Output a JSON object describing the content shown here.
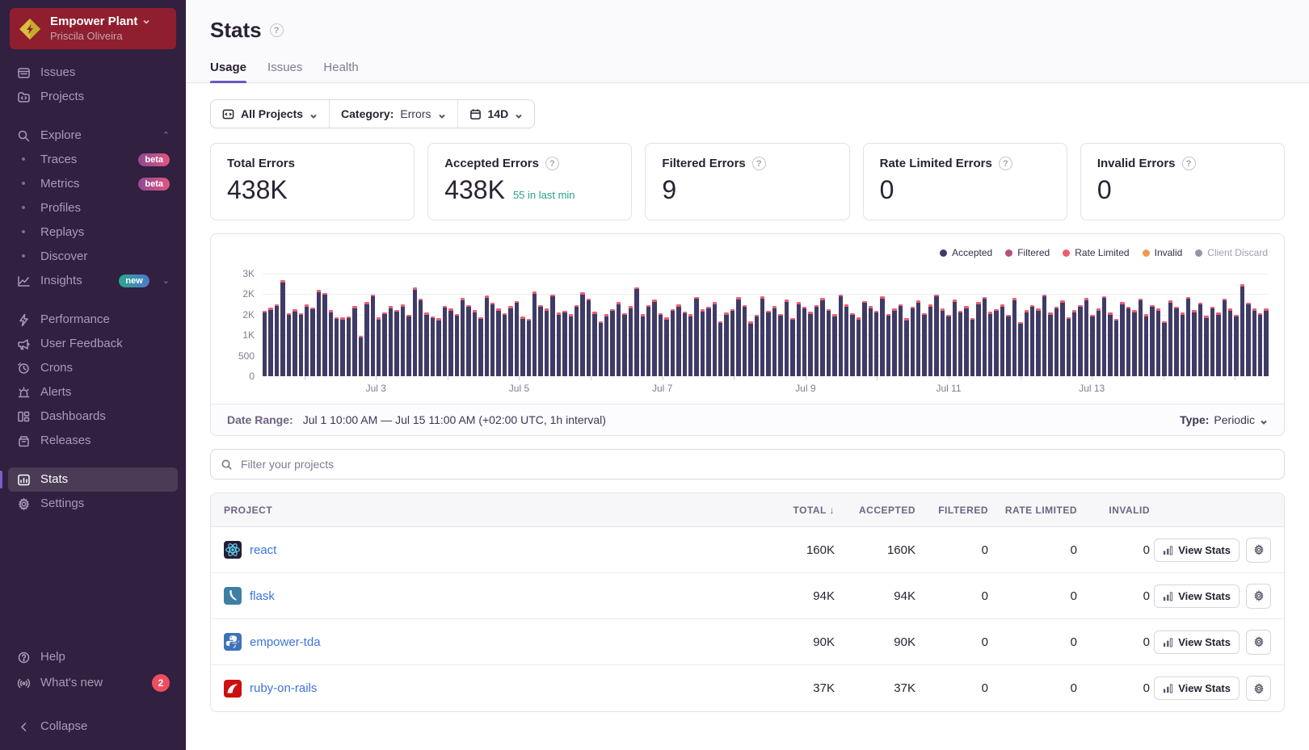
{
  "colors": {
    "accent": "#6559c5",
    "accepted": "#3f3b66",
    "filtered": "#b5517c",
    "rate_limited": "#ef5e69",
    "invalid": "#f19b4d",
    "client_discard": "#9a91a5",
    "link_blue": "#3c74db",
    "success_teal": "#2ba185",
    "badge_red": "#ef4e5e",
    "org_banner_red": "#8f1e2e"
  },
  "sidebar": {
    "org": {
      "name": "Empower Plant",
      "user": "Priscila Oliveira"
    },
    "groups": [
      [
        {
          "id": "issues",
          "label": "Issues",
          "icon": "issues"
        },
        {
          "id": "projects",
          "label": "Projects",
          "icon": "projects"
        }
      ],
      [
        {
          "id": "explore",
          "label": "Explore",
          "icon": "search",
          "chevron": "up"
        },
        {
          "id": "traces",
          "label": "Traces",
          "bullet": true,
          "badge": "beta"
        },
        {
          "id": "metrics",
          "label": "Metrics",
          "bullet": true,
          "badge": "beta"
        },
        {
          "id": "profiles",
          "label": "Profiles",
          "bullet": true
        },
        {
          "id": "replays",
          "label": "Replays",
          "bullet": true
        },
        {
          "id": "discover",
          "label": "Discover",
          "bullet": true
        },
        {
          "id": "insights",
          "label": "Insights",
          "icon": "insights",
          "badge": "new",
          "chevron": "down"
        }
      ],
      [
        {
          "id": "performance",
          "label": "Performance",
          "icon": "performance"
        },
        {
          "id": "user-feedback",
          "label": "User Feedback",
          "icon": "megaphone"
        },
        {
          "id": "crons",
          "label": "Crons",
          "icon": "clock"
        },
        {
          "id": "alerts",
          "label": "Alerts",
          "icon": "siren"
        },
        {
          "id": "dashboards",
          "label": "Dashboards",
          "icon": "dashboards"
        },
        {
          "id": "releases",
          "label": "Releases",
          "icon": "releases"
        }
      ],
      [
        {
          "id": "stats",
          "label": "Stats",
          "icon": "stats",
          "selected": true
        },
        {
          "id": "settings",
          "label": "Settings",
          "icon": "gear"
        }
      ]
    ],
    "footer": [
      {
        "id": "help",
        "label": "Help",
        "icon": "help"
      },
      {
        "id": "whats-new",
        "label": "What's new",
        "icon": "broadcast",
        "count": "2"
      }
    ],
    "collapse_label": "Collapse"
  },
  "header": {
    "title": "Stats",
    "tabs": [
      {
        "label": "Usage",
        "active": true
      },
      {
        "label": "Issues",
        "active": false
      },
      {
        "label": "Health",
        "active": false
      }
    ]
  },
  "filters": {
    "projects_value": "All Projects",
    "category_label": "Category:",
    "category_value": "Errors",
    "date_range_value": "14D"
  },
  "cards": [
    {
      "title": "Total Errors",
      "value": "438K",
      "help": false,
      "sub": ""
    },
    {
      "title": "Accepted Errors",
      "value": "438K",
      "help": true,
      "sub": "55 in last min"
    },
    {
      "title": "Filtered Errors",
      "value": "9",
      "help": true,
      "sub": ""
    },
    {
      "title": "Rate Limited Errors",
      "value": "0",
      "help": true,
      "sub": ""
    },
    {
      "title": "Invalid Errors",
      "value": "0",
      "help": true,
      "sub": ""
    }
  ],
  "chart_data": {
    "type": "bar",
    "title": "Errors over time (hourly, stacked)",
    "x_start": "Jul 1 10:00 AM",
    "x_end": "Jul 15 11:00 AM",
    "bin_interval": "1h (rendered as 2h bins)",
    "ylim": [
      0,
      2600
    ],
    "y_ticks": [
      {
        "value": 2500,
        "label": "3K"
      },
      {
        "value": 2000,
        "label": "2K"
      },
      {
        "value": 1500,
        "label": "2K"
      },
      {
        "value": 1000,
        "label": "1K"
      },
      {
        "value": 500,
        "label": "500"
      },
      {
        "value": 0,
        "label": "0"
      }
    ],
    "x_tick_days": [
      2,
      3,
      4,
      5,
      6,
      7,
      8,
      9,
      10,
      11,
      12,
      13,
      14,
      15
    ],
    "x_labeled_days": [
      3,
      5,
      7,
      9,
      11,
      13
    ],
    "x_tick_labels": [
      "Jul 3",
      "Jul 5",
      "Jul 7",
      "Jul 9",
      "Jul 11",
      "Jul 13"
    ],
    "total_hours": 337,
    "start_offset_hours": 14,
    "legend": [
      {
        "name": "Accepted",
        "color": "#3f3b66",
        "enabled": true
      },
      {
        "name": "Filtered",
        "color": "#b5517c",
        "enabled": true
      },
      {
        "name": "Rate Limited",
        "color": "#ef5e69",
        "enabled": true
      },
      {
        "name": "Invalid",
        "color": "#f19b4d",
        "enabled": true
      },
      {
        "name": "Client Discard",
        "color": "#9a91a5",
        "enabled": false
      }
    ],
    "series": [
      {
        "name": "Accepted",
        "values": [
          1560,
          1620,
          1710,
          2280,
          1500,
          1580,
          1490,
          1700,
          1640,
          2050,
          1980,
          1550,
          1400,
          1370,
          1420,
          1650,
          950,
          1750,
          1950,
          1380,
          1520,
          1660,
          1580,
          1700,
          1450,
          2100,
          1850,
          1500,
          1420,
          1360,
          1680,
          1590,
          1470,
          1850,
          1700,
          1550,
          1400,
          1920,
          1750,
          1600,
          1500,
          1650,
          1800,
          1400,
          1350,
          2000,
          1700,
          1600,
          1950,
          1500,
          1550,
          1450,
          1700,
          1980,
          1850,
          1520,
          1300,
          1450,
          1600,
          1750,
          1500,
          1650,
          2120,
          1450,
          1700,
          1820,
          1500,
          1380,
          1600,
          1700,
          1540,
          1460,
          1900,
          1580,
          1650,
          1750,
          1300,
          1500,
          1600,
          1870,
          1700,
          1280,
          1450,
          1900,
          1560,
          1650,
          1480,
          1820,
          1380,
          1750,
          1650,
          1520,
          1700,
          1850,
          1600,
          1450,
          1950,
          1700,
          1500,
          1380,
          1800,
          1650,
          1550,
          1900,
          1480,
          1600,
          1720,
          1350,
          1650,
          1800,
          1500,
          1700,
          1950,
          1600,
          1450,
          1820,
          1550,
          1650,
          1380,
          1750,
          1900,
          1520,
          1600,
          1700,
          1450,
          1850,
          1280,
          1550,
          1700,
          1600,
          1950,
          1500,
          1650,
          1800,
          1400,
          1550,
          1700,
          1850,
          1450,
          1600,
          1920,
          1500,
          1350,
          1750,
          1650,
          1550,
          1850,
          1450,
          1700,
          1600,
          1300,
          1800,
          1650,
          1500,
          1900,
          1550,
          1750,
          1420,
          1650,
          1500,
          1850,
          1600,
          1450,
          2180,
          1750,
          1600,
          1500,
          1600
        ]
      },
      {
        "name": "Rate Limited (tip)",
        "tip_cycle": [
          45,
          60,
          30,
          55,
          40,
          65,
          35,
          50
        ]
      }
    ]
  },
  "date_range": {
    "label": "Date Range:",
    "value": "Jul 1 10:00 AM — Jul 15 11:00 AM (+02:00 UTC, 1h interval)",
    "type_label": "Type:",
    "type_value": "Periodic"
  },
  "search": {
    "placeholder": "Filter your projects"
  },
  "table": {
    "columns": [
      "PROJECT",
      "TOTAL",
      "ACCEPTED",
      "FILTERED",
      "RATE LIMITED",
      "INVALID"
    ],
    "sorted_column": "TOTAL",
    "view_stats_label": "View Stats",
    "rows": [
      {
        "project": "react",
        "platform": "react",
        "icon_bg": "#241e35",
        "total": "160K",
        "accepted": "160K",
        "filtered": "0",
        "rate_limited": "0",
        "invalid": "0"
      },
      {
        "project": "flask",
        "platform": "flask",
        "icon_bg": "#3f7fa6",
        "total": "94K",
        "accepted": "94K",
        "filtered": "0",
        "rate_limited": "0",
        "invalid": "0"
      },
      {
        "project": "empower-tda",
        "platform": "python",
        "icon_bg": "#3b74b8",
        "total": "90K",
        "accepted": "90K",
        "filtered": "0",
        "rate_limited": "0",
        "invalid": "0"
      },
      {
        "project": "ruby-on-rails",
        "platform": "rails",
        "icon_bg": "#cc0f0f",
        "total": "37K",
        "accepted": "37K",
        "filtered": "0",
        "rate_limited": "0",
        "invalid": "0"
      }
    ]
  }
}
